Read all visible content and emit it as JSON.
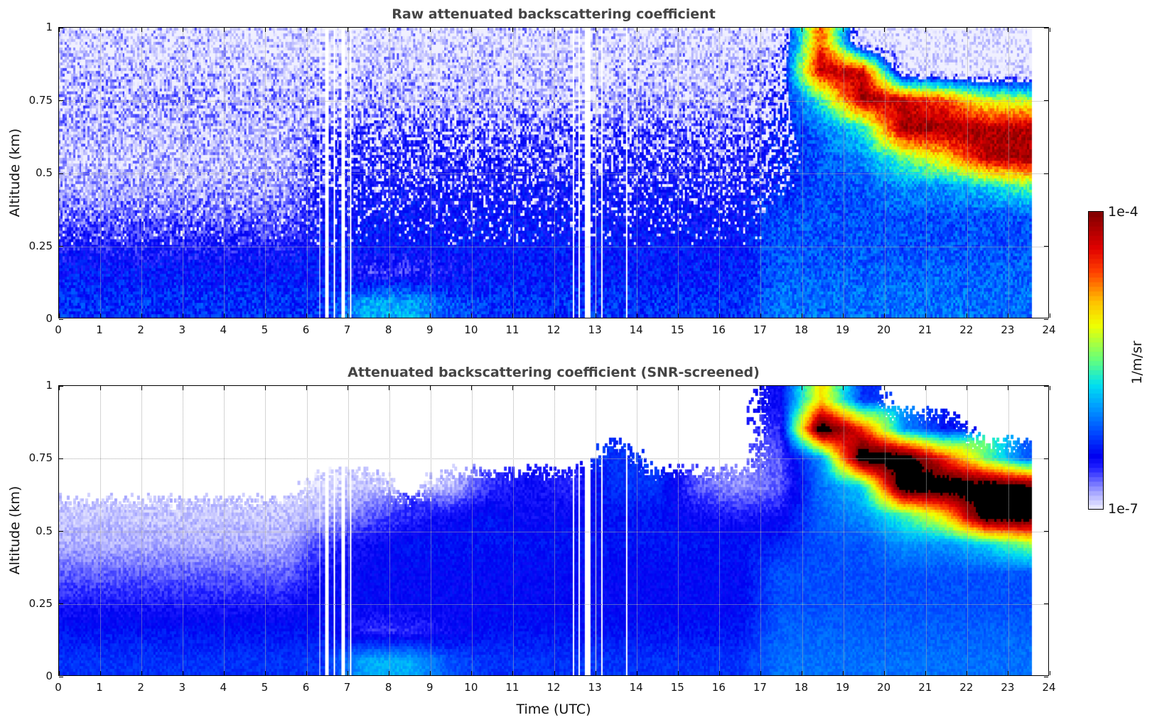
{
  "chart_data": [
    {
      "type": "heatmap",
      "title": "Raw attenuated backscattering coefficient",
      "xlabel": "",
      "ylabel": "Altitude (km)",
      "xlim": [
        0,
        24
      ],
      "ylim": [
        0,
        1
      ],
      "x_ticks": [
        "0",
        "1",
        "2",
        "3",
        "4",
        "5",
        "6",
        "7",
        "8",
        "9",
        "10",
        "11",
        "12",
        "13",
        "14",
        "15",
        "16",
        "17",
        "18",
        "19",
        "20",
        "21",
        "22",
        "23",
        "24"
      ],
      "y_ticks": [
        "0",
        "0.25",
        "0.5",
        "0.75",
        "1"
      ],
      "grid": true,
      "data_end_hour": 23.6,
      "value_units": "log10(1/m/sr)",
      "hours": [
        0.5,
        1.5,
        2.5,
        3.5,
        4.5,
        5.5,
        6.5,
        7.5,
        8.5,
        9.5,
        10.5,
        11.5,
        12.5,
        13.5,
        14.5,
        15.5,
        16.5,
        17.5,
        18.5,
        19.5,
        20.5,
        21.5,
        22.5,
        23.5
      ],
      "altitudes_km": [
        0.95,
        0.85,
        0.75,
        0.65,
        0.55,
        0.45,
        0.35,
        0.25,
        0.15,
        0.05
      ],
      "values": [
        [
          -6.85,
          -6.85,
          -6.85,
          -6.85,
          -6.85,
          -6.85,
          -6.85,
          -6.85,
          -6.85,
          -6.85,
          -6.85,
          -6.85,
          -6.85,
          -6.85,
          -6.85,
          -6.85,
          -6.85,
          -6.8,
          -4.6,
          -7,
          -7,
          -7,
          -7,
          -7
        ],
        [
          -6.8,
          -6.8,
          -6.8,
          -6.8,
          -6.8,
          -6.8,
          -6.8,
          -6.8,
          -6.8,
          -6.8,
          -6.8,
          -6.8,
          -6.8,
          -6.8,
          -6.8,
          -6.8,
          -6.8,
          -6.6,
          -4.2,
          -4.3,
          -6.9,
          -7,
          -7,
          -7
        ],
        [
          -6.75,
          -6.75,
          -6.75,
          -6.75,
          -6.75,
          -6.75,
          -6.75,
          -6.75,
          -6.75,
          -6.75,
          -6.75,
          -6.75,
          -6.75,
          -6.75,
          -6.75,
          -6.75,
          -6.75,
          -6.5,
          -5.6,
          -4.1,
          -4.3,
          -4.6,
          -5.2,
          -5.3
        ],
        [
          -6.8,
          -6.8,
          -6.8,
          -6.8,
          -6.8,
          -6.8,
          -6.6,
          -6.6,
          -6.6,
          -6.6,
          -6.6,
          -6.6,
          -6.6,
          -6.6,
          -6.6,
          -6.6,
          -6.6,
          -6.4,
          -6.1,
          -5.7,
          -4.1,
          -4.1,
          -4.15,
          -4.2
        ],
        [
          -6.85,
          -6.85,
          -6.85,
          -6.85,
          -6.85,
          -6.85,
          -6.55,
          -6.55,
          -6.55,
          -6.55,
          -6.55,
          -6.55,
          -6.55,
          -6.55,
          -6.55,
          -6.55,
          -6.55,
          -6.4,
          -6.2,
          -6.0,
          -5.5,
          -5.0,
          -4.2,
          -4.1
        ],
        [
          -6.8,
          -6.8,
          -6.8,
          -6.8,
          -6.8,
          -6.8,
          -6.5,
          -6.5,
          -6.5,
          -6.5,
          -6.5,
          -6.5,
          -6.5,
          -6.5,
          -6.5,
          -6.5,
          -6.5,
          -6.35,
          -6.2,
          -6.2,
          -6.0,
          -6.0,
          -5.8,
          -5.5
        ],
        [
          -6.7,
          -6.7,
          -6.7,
          -6.7,
          -6.7,
          -6.7,
          -6.45,
          -6.45,
          -6.45,
          -6.45,
          -6.45,
          -6.45,
          -6.45,
          -6.45,
          -6.45,
          -6.45,
          -6.45,
          -6.2,
          -6.2,
          -6.2,
          -6.2,
          -6.2,
          -6.2,
          -6.2
        ],
        [
          -6.55,
          -6.55,
          -6.55,
          -6.55,
          -6.55,
          -6.55,
          -6.4,
          -6.4,
          -6.4,
          -6.4,
          -6.4,
          -6.4,
          -6.4,
          -6.4,
          -6.4,
          -6.4,
          -6.4,
          -6.2,
          -6.2,
          -6.2,
          -6.2,
          -6.2,
          -6.2,
          -6.2
        ],
        [
          -6.4,
          -6.4,
          -6.4,
          -6.4,
          -6.4,
          -6.4,
          -6.4,
          -6.6,
          -6.6,
          -6.5,
          -6.4,
          -6.4,
          -6.4,
          -6.4,
          -6.4,
          -6.4,
          -6.4,
          -6.15,
          -6.15,
          -6.15,
          -6.15,
          -6.15,
          -6.15,
          -6.15
        ],
        [
          -6.3,
          -6.3,
          -6.3,
          -6.3,
          -6.3,
          -6.3,
          -6.3,
          -5.9,
          -5.9,
          -6.2,
          -6.3,
          -6.3,
          -6.3,
          -6.3,
          -6.3,
          -6.3,
          -6.3,
          -6.1,
          -6.1,
          -6.1,
          -6.1,
          -6.1,
          -6.1,
          -6.1
        ]
      ],
      "data_gaps_hours": [
        [
          6.3,
          6.35
        ],
        [
          6.45,
          6.55
        ],
        [
          6.65,
          6.7
        ],
        [
          6.85,
          6.95
        ],
        [
          7.05,
          7.1
        ],
        [
          12.45,
          12.5
        ],
        [
          12.6,
          12.65
        ],
        [
          12.75,
          12.9
        ],
        [
          13.0,
          13.05
        ],
        [
          13.15,
          13.2
        ],
        [
          13.75,
          13.8
        ]
      ]
    },
    {
      "type": "heatmap",
      "title": "Attenuated backscattering coefficient (SNR-screened)",
      "xlabel": "Time (UTC)",
      "ylabel": "Altitude (km)",
      "xlim": [
        0,
        24
      ],
      "ylim": [
        0,
        1
      ],
      "x_ticks": [
        "0",
        "1",
        "2",
        "3",
        "4",
        "5",
        "6",
        "7",
        "8",
        "9",
        "10",
        "11",
        "12",
        "13",
        "14",
        "15",
        "16",
        "17",
        "18",
        "19",
        "20",
        "21",
        "22",
        "23",
        "24"
      ],
      "y_ticks": [
        "0",
        "0.25",
        "0.5",
        "0.75",
        "1"
      ],
      "grid": true,
      "data_end_hour": 23.6,
      "value_units": "log10(1/m/sr)",
      "hours": [
        0.5,
        1.5,
        2.5,
        3.5,
        4.5,
        5.5,
        6.5,
        7.5,
        8.5,
        9.5,
        10.5,
        11.5,
        12.5,
        13.5,
        14.5,
        15.5,
        16.5,
        17.5,
        18.5,
        19.5,
        20.5,
        21.5,
        22.5,
        23.5
      ],
      "altitudes_km": [
        0.95,
        0.85,
        0.75,
        0.65,
        0.55,
        0.45,
        0.35,
        0.25,
        0.15,
        0.05
      ],
      "values": [
        [
          null,
          null,
          null,
          null,
          null,
          null,
          null,
          null,
          null,
          null,
          null,
          null,
          null,
          null,
          null,
          null,
          null,
          -6.5,
          -5.0,
          -6.3,
          null,
          null,
          null,
          null
        ],
        [
          null,
          null,
          null,
          null,
          null,
          null,
          null,
          null,
          null,
          null,
          null,
          null,
          null,
          null,
          null,
          null,
          null,
          -6.6,
          -3.6,
          -4.5,
          -6.0,
          -6.4,
          null,
          null
        ],
        [
          null,
          null,
          null,
          null,
          null,
          null,
          null,
          null,
          null,
          null,
          null,
          null,
          null,
          -6.3,
          null,
          null,
          null,
          -6.7,
          -6.0,
          -3.6,
          -3.6,
          -4.5,
          -5.5,
          -6.2
        ],
        [
          null,
          null,
          null,
          null,
          null,
          null,
          -6.95,
          -6.9,
          null,
          -6.9,
          -6.6,
          -6.5,
          -6.6,
          -6.3,
          -6.3,
          -6.7,
          -6.8,
          -6.7,
          -6.1,
          -5.8,
          -3.6,
          -3.6,
          -3.6,
          -3.8
        ],
        [
          -6.9,
          -6.9,
          -6.9,
          -6.9,
          -6.9,
          -6.9,
          -6.85,
          -6.7,
          -6.6,
          -6.5,
          -6.4,
          -6.5,
          -6.45,
          -6.4,
          -6.4,
          -6.5,
          -6.55,
          -6.5,
          -6.15,
          -6.0,
          -5.6,
          -5.0,
          -3.6,
          -3.6
        ],
        [
          -6.85,
          -6.85,
          -6.85,
          -6.85,
          -6.85,
          -6.85,
          -6.6,
          -6.5,
          -6.4,
          -6.4,
          -6.4,
          -6.4,
          -6.4,
          -6.4,
          -6.4,
          -6.4,
          -6.4,
          -6.35,
          -6.2,
          -6.2,
          -6.0,
          -6.0,
          -5.8,
          -5.4
        ],
        [
          -6.7,
          -6.7,
          -6.7,
          -6.7,
          -6.7,
          -6.7,
          -6.5,
          -6.45,
          -6.45,
          -6.45,
          -6.45,
          -6.45,
          -6.45,
          -6.45,
          -6.45,
          -6.45,
          -6.45,
          -6.2,
          -6.2,
          -6.2,
          -6.2,
          -6.2,
          -6.2,
          -6.2
        ],
        [
          -6.55,
          -6.55,
          -6.55,
          -6.55,
          -6.55,
          -6.55,
          -6.45,
          -6.45,
          -6.45,
          -6.45,
          -6.45,
          -6.45,
          -6.45,
          -6.45,
          -6.45,
          -6.45,
          -6.45,
          -6.2,
          -6.2,
          -6.2,
          -6.2,
          -6.2,
          -6.2,
          -6.2
        ],
        [
          -6.4,
          -6.4,
          -6.4,
          -6.4,
          -6.4,
          -6.4,
          -6.4,
          -6.6,
          -6.6,
          -6.5,
          -6.4,
          -6.4,
          -6.4,
          -6.4,
          -6.4,
          -6.4,
          -6.4,
          -6.15,
          -6.15,
          -6.15,
          -6.15,
          -6.15,
          -6.15,
          -6.15
        ],
        [
          -6.3,
          -6.3,
          -6.3,
          -6.3,
          -6.3,
          -6.3,
          -6.3,
          -5.9,
          -5.9,
          -6.2,
          -6.3,
          -6.3,
          -6.3,
          -6.3,
          -6.3,
          -6.3,
          -6.3,
          -6.1,
          -6.1,
          -6.1,
          -6.1,
          -6.1,
          -6.1,
          -6.1
        ]
      ],
      "data_gaps_hours": [
        [
          6.3,
          6.35
        ],
        [
          6.45,
          6.55
        ],
        [
          6.65,
          6.7
        ],
        [
          6.85,
          6.95
        ],
        [
          7.05,
          7.1
        ],
        [
          12.45,
          12.5
        ],
        [
          12.6,
          12.65
        ],
        [
          12.75,
          12.9
        ],
        [
          13.0,
          13.05
        ],
        [
          13.15,
          13.2
        ],
        [
          13.75,
          13.8
        ]
      ]
    }
  ],
  "colorbar": {
    "label": "1/m/sr",
    "max_label": "1e-4",
    "min_label": "1e-7",
    "log10_range": [
      -7,
      -4
    ],
    "over_color": "#000000",
    "missing_color": "#ffffff"
  }
}
